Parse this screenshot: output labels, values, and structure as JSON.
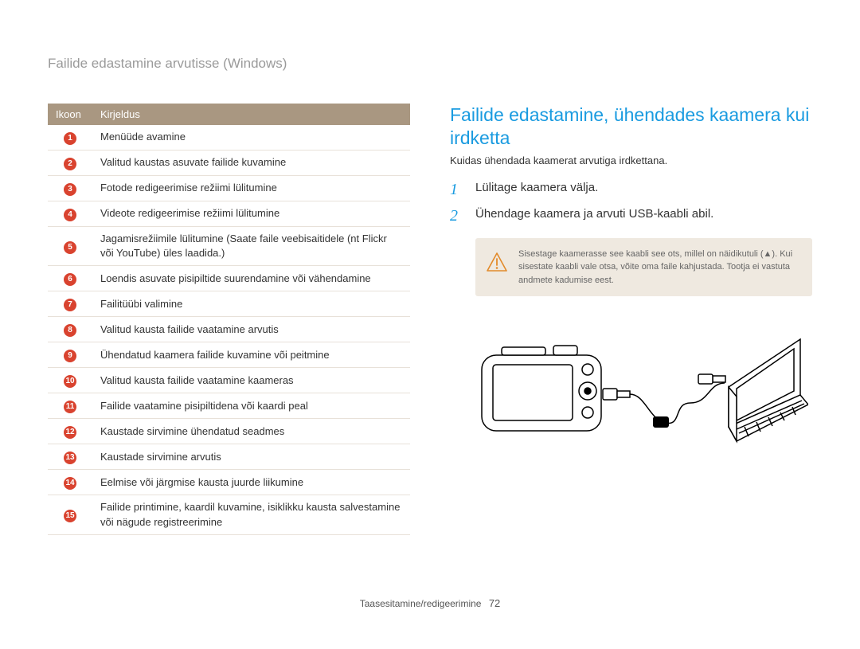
{
  "pageHeader": "Failide edastamine arvutisse (Windows)",
  "table": {
    "headers": {
      "icon": "Ikoon",
      "desc": "Kirjeldus"
    },
    "iconColor": "#d9432f",
    "headerBg": "#a99781",
    "borderColor": "#e8e1d9",
    "rows": [
      {
        "n": "1",
        "desc": "Menüüde avamine"
      },
      {
        "n": "2",
        "desc": "Valitud kaustas asuvate failide kuvamine"
      },
      {
        "n": "3",
        "desc": "Fotode redigeerimise režiimi lülitumine"
      },
      {
        "n": "4",
        "desc": "Videote redigeerimise režiimi lülitumine"
      },
      {
        "n": "5",
        "desc": "Jagamisrežiimile lülitumine (Saate faile veebisaitidele (nt Flickr või YouTube) üles laadida.)"
      },
      {
        "n": "6",
        "desc": "Loendis asuvate pisipiltide suurendamine või vähendamine"
      },
      {
        "n": "7",
        "desc": "Failitüübi valimine"
      },
      {
        "n": "8",
        "desc": "Valitud kausta failide vaatamine arvutis"
      },
      {
        "n": "9",
        "desc": "Ühendatud kaamera failide kuvamine või peitmine"
      },
      {
        "n": "10",
        "desc": "Valitud kausta failide vaatamine kaameras"
      },
      {
        "n": "11",
        "desc": "Failide vaatamine pisipiltidena või kaardi peal"
      },
      {
        "n": "12",
        "desc": "Kaustade sirvimine ühendatud seadmes"
      },
      {
        "n": "13",
        "desc": "Kaustade sirvimine arvutis"
      },
      {
        "n": "14",
        "desc": "Eelmise või järgmise kausta juurde liikumine"
      },
      {
        "n": "15",
        "desc": "Failide printimine, kaardil kuvamine, isiklikku kausta salvestamine või nägude registreerimine"
      }
    ]
  },
  "section": {
    "heading": "Failide edastamine, ühendades kaamera kui irdketta",
    "sub": "Kuidas ühendada kaamerat arvutiga irdkettana.",
    "headingColor": "#1a9be0",
    "steps": [
      {
        "n": "1",
        "text": "Lülitage kaamera välja."
      },
      {
        "n": "2",
        "text": "Ühendage kaamera ja arvuti USB-kaabli abil."
      }
    ],
    "warning": {
      "bg": "#efe9e0",
      "iconStroke": "#e28a2a",
      "text": "Sisestage kaamerasse see kaabli see ots, millel on näidikutuli (▲). Kui sisestate kaabli vale otsa, võite oma faile kahjustada. Tootja ei vastuta andmete kadumise eest."
    }
  },
  "footer": {
    "text": "Taasesitamine/redigeerimine",
    "page": "72"
  },
  "illustrationColors": {
    "stroke": "#000000",
    "fill": "#ffffff"
  }
}
